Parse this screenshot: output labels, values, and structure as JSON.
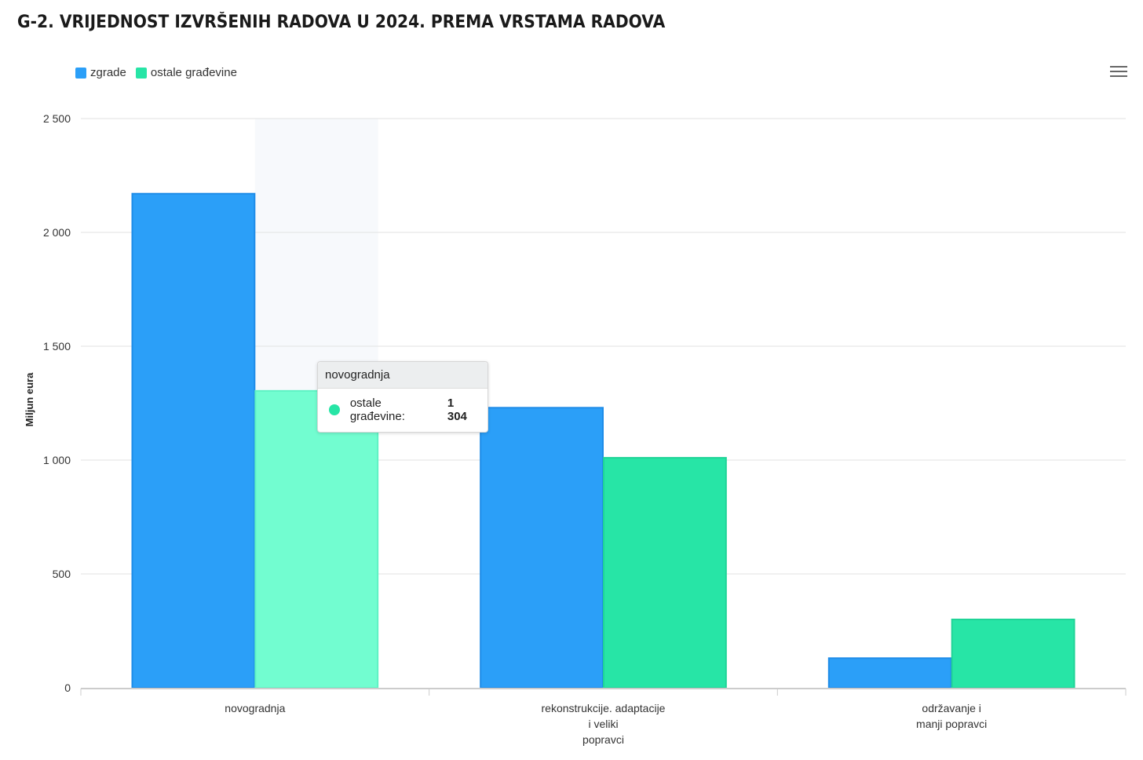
{
  "title": "G-2. VRIJEDNOST IZVRŠENIH RADOVA U 2024. PREMA VRSTAMA RADOVA",
  "menu_icon": "hamburger-menu-icon",
  "colors": {
    "zgrade": "#2b9ff8",
    "ostale": "#27e5a6",
    "ostale_hover": "#72fdd0",
    "grid": "#e2e2e2",
    "axis": "#cccccc"
  },
  "tooltip": {
    "header": "novogradnja",
    "series": "ostale građevine:",
    "value": "1 304"
  },
  "chart_data": {
    "type": "bar",
    "title": "G-2. VRIJEDNOST IZVRŠENIH RADOVA U 2024. PREMA VRSTAMA RADOVA",
    "xlabel": "",
    "ylabel": "Miljun eura",
    "ylim": [
      0,
      2500
    ],
    "yticks": [
      0,
      500,
      1000,
      1500,
      2000,
      2500
    ],
    "ytick_labels": [
      "0",
      "500",
      "1 000",
      "1 500",
      "2 000",
      "2 500"
    ],
    "categories": [
      [
        "novogradnja"
      ],
      [
        "rekonstrukcije. adaptacije",
        "i veliki",
        "popravci"
      ],
      [
        "održavanje i",
        "manji popravci"
      ]
    ],
    "legend_position": "top-left",
    "series": [
      {
        "name": "zgrade",
        "values": [
          2170,
          1230,
          130
        ]
      },
      {
        "name": "ostale građevine",
        "values": [
          1304,
          1010,
          300
        ]
      }
    ]
  }
}
